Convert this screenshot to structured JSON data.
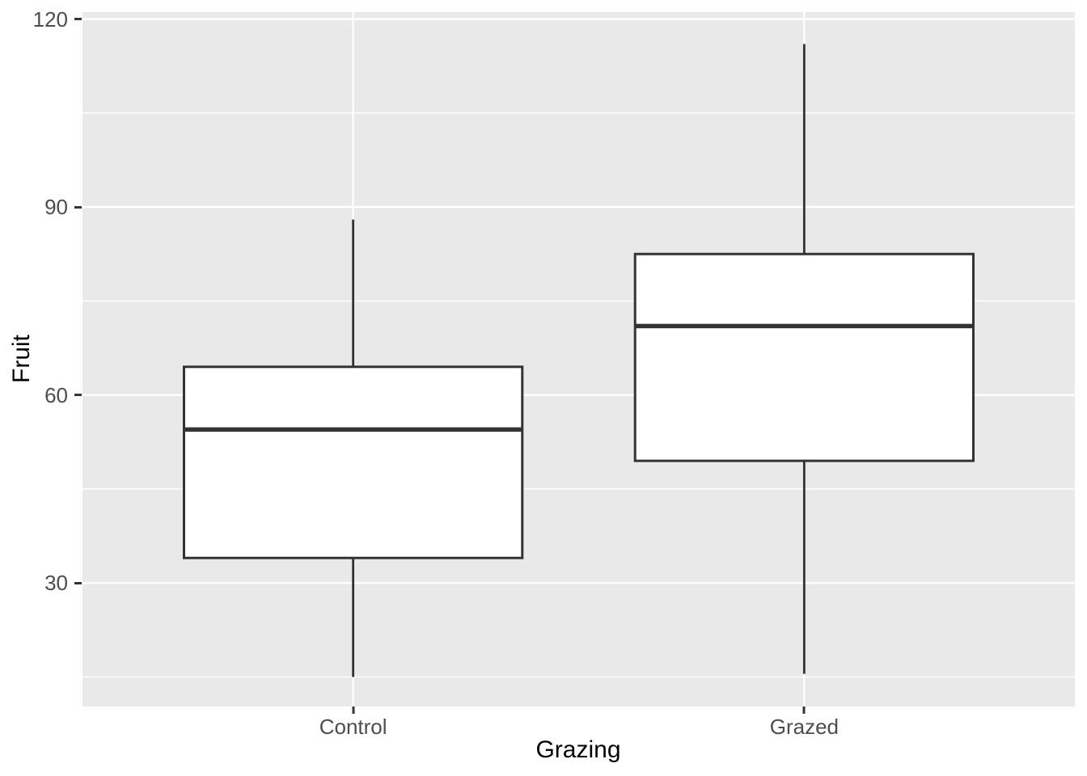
{
  "chart_data": {
    "type": "boxplot",
    "title": "",
    "xlabel": "Grazing",
    "ylabel": "Fruit",
    "categories": [
      "Control",
      "Grazed"
    ],
    "series": [
      {
        "name": "Control",
        "whisker_low": 15,
        "q1": 34,
        "median": 54.5,
        "q3": 64.5,
        "whisker_high": 88,
        "outliers": []
      },
      {
        "name": "Grazed",
        "whisker_low": 15.5,
        "q1": 49.5,
        "median": 71,
        "q3": 82.5,
        "whisker_high": 116,
        "outliers": []
      }
    ],
    "y_axis": {
      "major_ticks": [
        30,
        60,
        90,
        120
      ],
      "minor_gridlines": [
        15,
        45,
        75,
        105
      ],
      "ylim": [
        10.3,
        121.1
      ]
    },
    "x_axis": {
      "tick_labels": [
        "Control",
        "Grazed"
      ]
    },
    "grid": "horizontal major+minor white lines; vertical white major line at each category",
    "legend": "none",
    "colors": {
      "figure_background": "#FFFFFF",
      "panel_background": "#E9E9E9",
      "gridline": "#FFFFFF",
      "box_fill": "#FFFFFF",
      "box_stroke": "#333333",
      "median_stroke": "#333333",
      "whisker_stroke": "#333333",
      "tick_mark": "#333333",
      "axis_text": "#4D4D4D",
      "axis_title": "#000000"
    }
  }
}
